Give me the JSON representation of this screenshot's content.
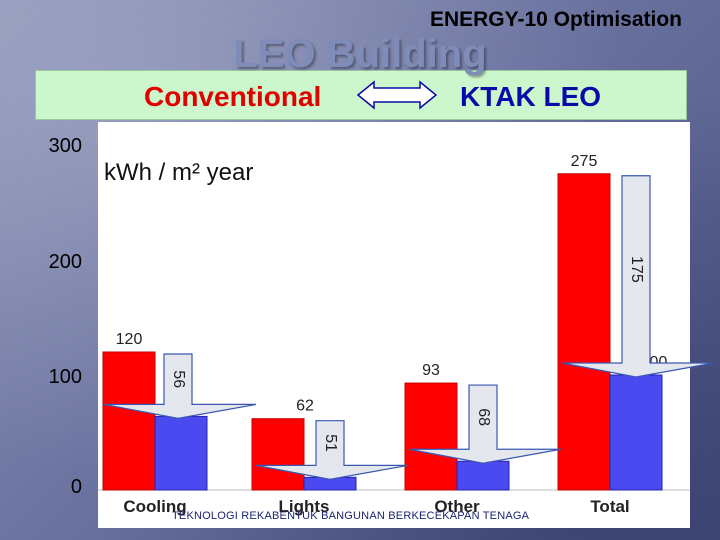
{
  "header": {
    "subtitle": "ENERGY-10  Optimisation",
    "title": "LEO Building"
  },
  "banner": {
    "left_label": "Conventional",
    "right_label": "KTAK LEO",
    "arrow_icon": "double-arrow-icon"
  },
  "footer": {
    "text": "TEKNOLOGI REKABENTUK BANGUNAN BERKECEKAPAN TENAGA"
  },
  "colors": {
    "conventional": "#ff0000",
    "ktak_leo": "#4a4af0",
    "plot_bg": "#ffffff",
    "banner_bg": "#ccf7cc"
  },
  "chart_data": {
    "type": "bar",
    "unit_label": "kWh / m² year",
    "categories": [
      "Cooling",
      "Lights",
      "Other",
      "Total"
    ],
    "series": [
      {
        "name": "Conventional",
        "values": [
          120,
          62,
          93,
          275
        ]
      },
      {
        "name": "KTAK LEO",
        "values": [
          64,
          11,
          25,
          100
        ]
      }
    ],
    "savings": [
      56,
      51,
      68,
      175
    ],
    "y_ticks": [
      "0",
      "100",
      "200",
      "300"
    ],
    "ylim": [
      0,
      300
    ],
    "grid": false
  }
}
